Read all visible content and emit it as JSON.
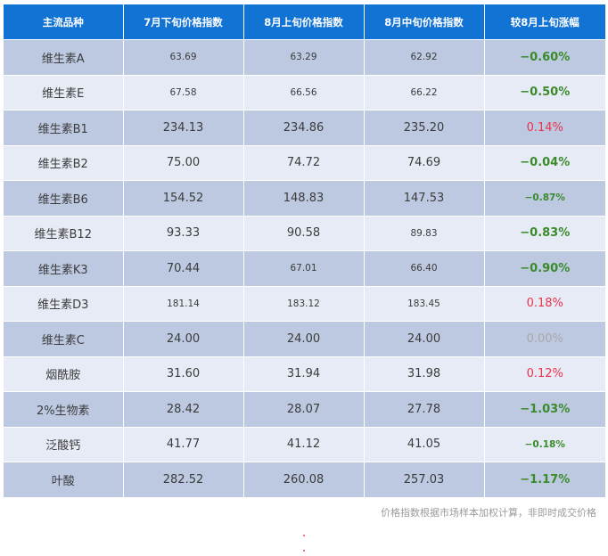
{
  "headers": [
    "主流品种",
    "7月下旬价格指数",
    "8月上旬价格指数",
    "8月中旬价格指数",
    "较8月上旬涨幅"
  ],
  "rows": [
    {
      "name": "维生素A",
      "jul_late": "63.69",
      "aug_early": "63.29",
      "aug_mid": "62.92",
      "change": "−0.60%",
      "trend": "down"
    },
    {
      "name": "维生素E",
      "jul_late": "67.58",
      "aug_early": "66.56",
      "aug_mid": "66.22",
      "change": "−0.50%",
      "trend": "down"
    },
    {
      "name": "维生素B1",
      "jul_late": "234.13",
      "aug_early": "234.86",
      "aug_mid": "235.20",
      "change": "0.14%",
      "trend": "up"
    },
    {
      "name": "维生素B2",
      "jul_late": "75.00",
      "aug_early": "74.72",
      "aug_mid": "74.69",
      "change": "−0.04%",
      "trend": "down"
    },
    {
      "name": "维生素B6",
      "jul_late": "154.52",
      "aug_early": "148.83",
      "aug_mid": "147.53",
      "change": "−0.87%",
      "trend": "down"
    },
    {
      "name": "维生素B12",
      "jul_late": "93.33",
      "aug_early": "90.58",
      "aug_mid": "89.83",
      "change": "−0.83%",
      "trend": "down"
    },
    {
      "name": "维生素K3",
      "jul_late": "70.44",
      "aug_early": "67.01",
      "aug_mid": "66.40",
      "change": "−0.90%",
      "trend": "down"
    },
    {
      "name": "维生素D3",
      "jul_late": "181.14",
      "aug_early": "183.12",
      "aug_mid": "183.45",
      "change": "0.18%",
      "trend": "up"
    },
    {
      "name": "维生素C",
      "jul_late": "24.00",
      "aug_early": "24.00",
      "aug_mid": "24.00",
      "change": "0.00%",
      "trend": "zero"
    },
    {
      "name": "烟酰胺",
      "jul_late": "31.60",
      "aug_early": "31.94",
      "aug_mid": "31.98",
      "change": "0.12%",
      "trend": "up"
    },
    {
      "name": "2%生物素",
      "jul_late": "28.42",
      "aug_early": "28.07",
      "aug_mid": "27.78",
      "change": "−1.03%",
      "trend": "down"
    },
    {
      "name": "泛酸钙",
      "jul_late": "41.77",
      "aug_early": "41.12",
      "aug_mid": "41.05",
      "change": "−0.18%",
      "trend": "down"
    },
    {
      "name": "叶酸",
      "jul_late": "282.52",
      "aug_early": "260.08",
      "aug_mid": "257.03",
      "change": "−1.17%",
      "trend": "down"
    }
  ],
  "footnote": "价格指数根据市场样本加权计算，非即时成交价格",
  "colors": {
    "header_bg": "#1173d4",
    "row_odd": "#bcc9e0",
    "row_even": "#e6ebf5",
    "down": "#3b8a2c",
    "up": "#e8344a",
    "zero": "#a8a8a8"
  }
}
